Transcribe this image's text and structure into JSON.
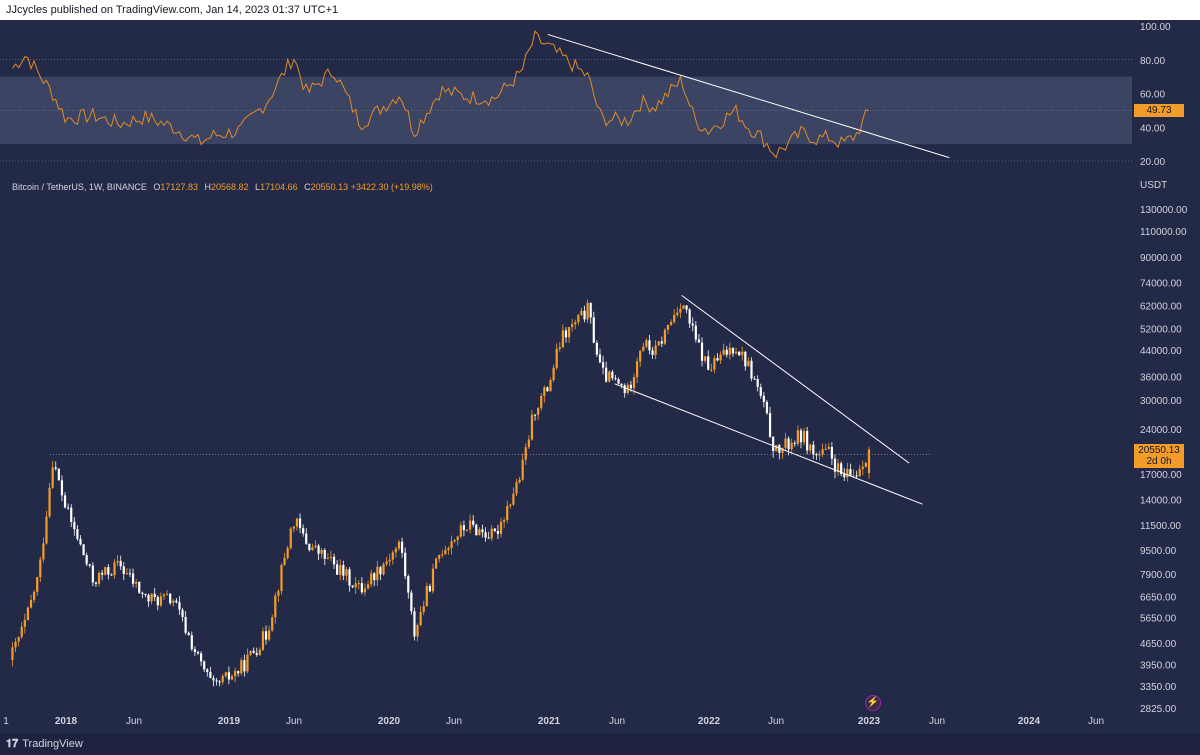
{
  "header": {
    "publish_text": "JJcycles published on TradingView.com, Jan 14, 2023 01:37 UTC+1"
  },
  "legend": {
    "symbol": "Bitcoin / TetherUS, 1W, BINANCE",
    "o_label": "O",
    "o": "17127.83",
    "h_label": "H",
    "h": "20568.82",
    "l_label": "L",
    "l": "17104.66",
    "c_label": "C",
    "c": "20550.13",
    "change": "+3422.30 (+19.98%)"
  },
  "rsi": {
    "current_label": "49.73",
    "ticks": [
      "100.00",
      "80.00",
      "60.00",
      "40.00",
      "20.00"
    ],
    "band": [
      30,
      70
    ],
    "colors": {
      "line": "#e08a2a",
      "band": "#3f4766",
      "tag": "#f39c2a"
    }
  },
  "price_axis": {
    "unit": "USDT",
    "ticks": [
      "130000.00",
      "110000.00",
      "90000.00",
      "74000.00",
      "62000.00",
      "52000.00",
      "44000.00",
      "36000.00",
      "30000.00",
      "24000.00",
      "17000.00",
      "14000.00",
      "11500.00",
      "9500.00",
      "7900.00",
      "6650.00",
      "5650.00",
      "4650.00",
      "3950.00",
      "3350.00",
      "2825.00"
    ],
    "current_price": "20550.13",
    "countdown": "2d 0h"
  },
  "time_axis": {
    "labels": [
      "1",
      "2018",
      "Jun",
      "2019",
      "Jun",
      "2020",
      "Jun",
      "2021",
      "Jun",
      "2022",
      "Jun",
      "2023",
      "Jun",
      "2024",
      "Jun"
    ]
  },
  "footer": {
    "brand": "TradingView"
  },
  "chart_data": [
    {
      "type": "candlestick",
      "title": "Bitcoin / TetherUS, 1W, BINANCE",
      "scale": "log",
      "ylim": [
        2700,
        140000
      ],
      "x_range": [
        "2017-08",
        "2024-06"
      ],
      "colors": {
        "up": "#f39c2a",
        "down": "#ffffff"
      },
      "anchors": [
        {
          "date": "2017-09",
          "price": 4300
        },
        {
          "date": "2017-10",
          "price": 5500
        },
        {
          "date": "2017-11",
          "price": 8000
        },
        {
          "date": "2017-12",
          "price": 19000
        },
        {
          "date": "2018-01",
          "price": 13000
        },
        {
          "date": "2018-02",
          "price": 10000
        },
        {
          "date": "2018-03",
          "price": 7500
        },
        {
          "date": "2018-05",
          "price": 8500
        },
        {
          "date": "2018-07",
          "price": 6500
        },
        {
          "date": "2018-09",
          "price": 6500
        },
        {
          "date": "2018-11",
          "price": 4000
        },
        {
          "date": "2018-12",
          "price": 3300
        },
        {
          "date": "2019-02",
          "price": 3800
        },
        {
          "date": "2019-04",
          "price": 5000
        },
        {
          "date": "2019-06",
          "price": 12000
        },
        {
          "date": "2019-07",
          "price": 10000
        },
        {
          "date": "2019-09",
          "price": 8500
        },
        {
          "date": "2019-11",
          "price": 7000
        },
        {
          "date": "2020-02",
          "price": 10000
        },
        {
          "date": "2020-03",
          "price": 5000
        },
        {
          "date": "2020-05",
          "price": 9500
        },
        {
          "date": "2020-07",
          "price": 11500
        },
        {
          "date": "2020-09",
          "price": 10500
        },
        {
          "date": "2020-11",
          "price": 17000
        },
        {
          "date": "2020-12",
          "price": 28000
        },
        {
          "date": "2021-01",
          "price": 33000
        },
        {
          "date": "2021-02",
          "price": 48000
        },
        {
          "date": "2021-04",
          "price": 60000
        },
        {
          "date": "2021-05",
          "price": 37000
        },
        {
          "date": "2021-07",
          "price": 32000
        },
        {
          "date": "2021-08",
          "price": 47000
        },
        {
          "date": "2021-09",
          "price": 43000
        },
        {
          "date": "2021-11",
          "price": 65000
        },
        {
          "date": "2021-12",
          "price": 48000
        },
        {
          "date": "2022-01",
          "price": 38000
        },
        {
          "date": "2022-03",
          "price": 46000
        },
        {
          "date": "2022-04",
          "price": 39000
        },
        {
          "date": "2022-05",
          "price": 30000
        },
        {
          "date": "2022-06",
          "price": 20000
        },
        {
          "date": "2022-08",
          "price": 23000
        },
        {
          "date": "2022-09",
          "price": 19500
        },
        {
          "date": "2022-10",
          "price": 20000
        },
        {
          "date": "2022-11",
          "price": 16500
        },
        {
          "date": "2022-12",
          "price": 17000
        },
        {
          "date": "2023-01",
          "price": 20550
        }
      ],
      "trendlines": [
        {
          "from": {
            "date": "2021-11",
            "price": 67000
          },
          "to": {
            "date": "2023-04",
            "price": 18500
          }
        },
        {
          "from": {
            "date": "2021-06",
            "price": 34000
          },
          "to": {
            "date": "2023-05",
            "price": 13500
          }
        }
      ],
      "horizontal_line": 19800
    },
    {
      "type": "line",
      "title": "RSI",
      "ylim": [
        20,
        100
      ],
      "points": [
        {
          "date": "2017-09",
          "value": 75
        },
        {
          "date": "2017-10",
          "value": 83
        },
        {
          "date": "2017-12",
          "value": 60
        },
        {
          "date": "2018-01",
          "value": 45
        },
        {
          "date": "2018-03",
          "value": 47
        },
        {
          "date": "2018-05",
          "value": 42
        },
        {
          "date": "2018-07",
          "value": 46
        },
        {
          "date": "2018-09",
          "value": 40
        },
        {
          "date": "2018-11",
          "value": 31
        },
        {
          "date": "2018-12",
          "value": 35
        },
        {
          "date": "2019-02",
          "value": 38
        },
        {
          "date": "2019-04",
          "value": 55
        },
        {
          "date": "2019-06",
          "value": 82
        },
        {
          "date": "2019-07",
          "value": 60
        },
        {
          "date": "2019-09",
          "value": 74
        },
        {
          "date": "2019-11",
          "value": 42
        },
        {
          "date": "2020-02",
          "value": 60
        },
        {
          "date": "2020-03",
          "value": 37
        },
        {
          "date": "2020-05",
          "value": 62
        },
        {
          "date": "2020-07",
          "value": 58
        },
        {
          "date": "2020-09",
          "value": 57
        },
        {
          "date": "2020-11",
          "value": 72
        },
        {
          "date": "2020-12",
          "value": 93
        },
        {
          "date": "2021-01",
          "value": 88
        },
        {
          "date": "2021-02",
          "value": 82
        },
        {
          "date": "2021-04",
          "value": 70
        },
        {
          "date": "2021-05",
          "value": 45
        },
        {
          "date": "2021-07",
          "value": 44
        },
        {
          "date": "2021-08",
          "value": 55
        },
        {
          "date": "2021-09",
          "value": 52
        },
        {
          "date": "2021-11",
          "value": 68
        },
        {
          "date": "2021-12",
          "value": 44
        },
        {
          "date": "2022-01",
          "value": 38
        },
        {
          "date": "2022-03",
          "value": 50
        },
        {
          "date": "2022-04",
          "value": 40
        },
        {
          "date": "2022-05",
          "value": 34
        },
        {
          "date": "2022-06",
          "value": 24
        },
        {
          "date": "2022-08",
          "value": 37
        },
        {
          "date": "2022-09",
          "value": 33
        },
        {
          "date": "2022-10",
          "value": 34
        },
        {
          "date": "2022-11",
          "value": 30
        },
        {
          "date": "2022-12",
          "value": 35
        },
        {
          "date": "2023-01",
          "value": 49.73
        }
      ],
      "trendline": {
        "from": {
          "date": "2021-01",
          "value": 95
        },
        "to": {
          "date": "2023-07",
          "value": 22
        }
      }
    }
  ]
}
